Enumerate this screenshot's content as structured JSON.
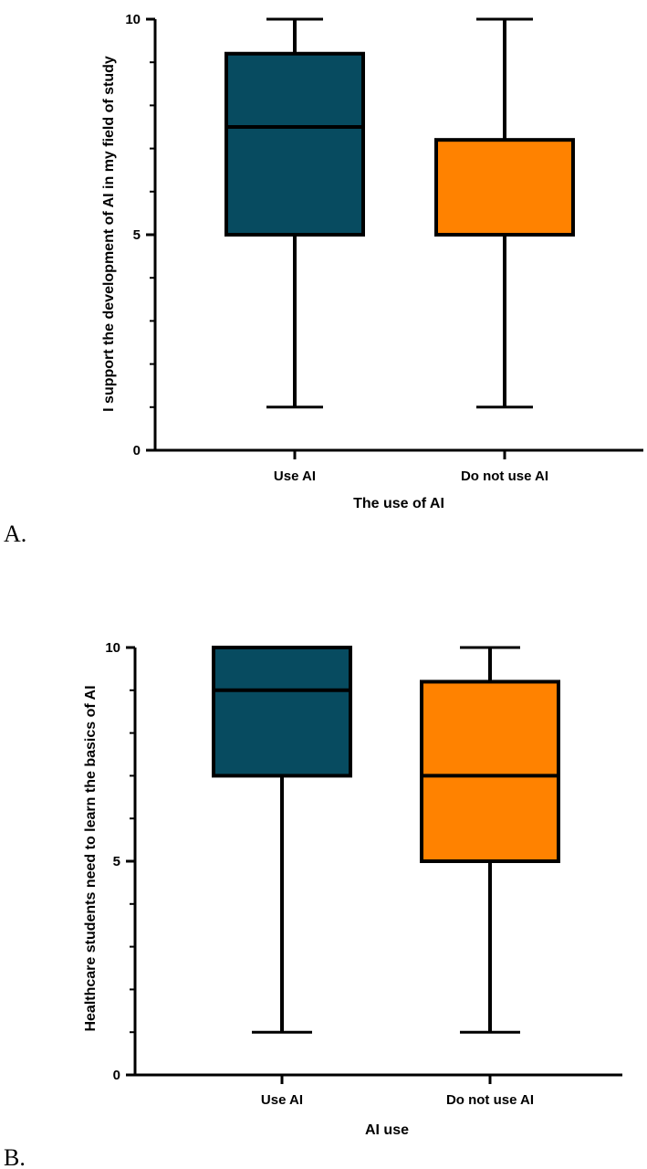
{
  "chart_data": [
    {
      "panel_label": "A.",
      "type": "box",
      "xlabel": "The use of AI",
      "ylabel": "I support the development of AI in my field of study",
      "ylim": [
        0,
        10
      ],
      "yticks": [
        "0",
        "5",
        "10"
      ],
      "categories": [
        "Use AI",
        "Do not use AI"
      ],
      "boxes": [
        {
          "category": "Use AI",
          "min": 1,
          "q1": 5,
          "median": 7.5,
          "q3": 9.2,
          "max": 10,
          "color": "#074b60"
        },
        {
          "category": "Do not use AI",
          "min": 1,
          "q1": 5,
          "median": 5,
          "q3": 7.2,
          "max": 10,
          "color": "#ff8200"
        }
      ]
    },
    {
      "panel_label": "B.",
      "type": "box",
      "xlabel": "AI use",
      "ylabel": "Healthcare students need to learn the basics of AI",
      "ylim": [
        0,
        10
      ],
      "yticks": [
        "0",
        "5",
        "10"
      ],
      "categories": [
        "Use AI",
        "Do not use AI"
      ],
      "boxes": [
        {
          "category": "Use AI",
          "min": 1,
          "q1": 7,
          "median": 9,
          "q3": 10,
          "max": 10,
          "color": "#074b60"
        },
        {
          "category": "Do not use AI",
          "min": 1,
          "q1": 5,
          "median": 7,
          "q3": 9.2,
          "max": 10,
          "color": "#ff8200"
        }
      ]
    }
  ]
}
